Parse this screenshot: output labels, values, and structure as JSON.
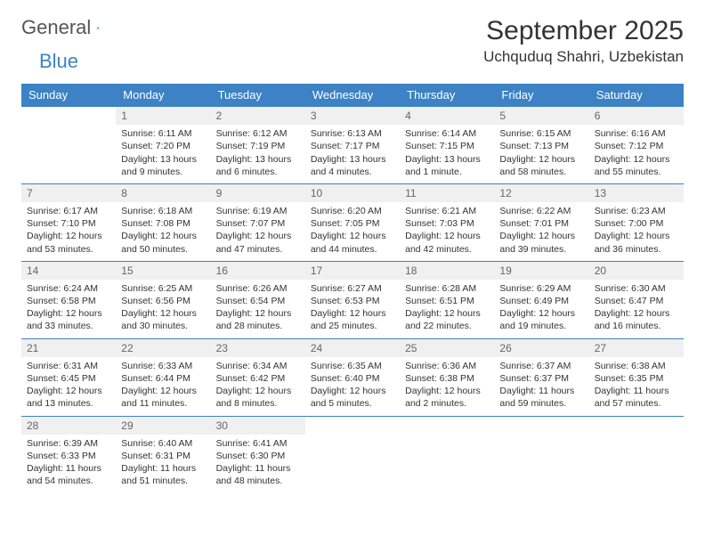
{
  "logo": {
    "text1": "General",
    "text2": "Blue"
  },
  "title": "September 2025",
  "location": "Uchquduq Shahri, Uzbekistan",
  "colors": {
    "header_bg": "#3c82c4",
    "header_text": "#ffffff",
    "daynum_bg": "#f0f0f0",
    "daynum_text": "#666666",
    "rule": "#3c82c4",
    "body_text": "#333333"
  },
  "weekdays": [
    "Sunday",
    "Monday",
    "Tuesday",
    "Wednesday",
    "Thursday",
    "Friday",
    "Saturday"
  ],
  "weeks": [
    [
      null,
      {
        "n": "1",
        "sr": "Sunrise: 6:11 AM",
        "ss": "Sunset: 7:20 PM",
        "dl": "Daylight: 13 hours and 9 minutes."
      },
      {
        "n": "2",
        "sr": "Sunrise: 6:12 AM",
        "ss": "Sunset: 7:19 PM",
        "dl": "Daylight: 13 hours and 6 minutes."
      },
      {
        "n": "3",
        "sr": "Sunrise: 6:13 AM",
        "ss": "Sunset: 7:17 PM",
        "dl": "Daylight: 13 hours and 4 minutes."
      },
      {
        "n": "4",
        "sr": "Sunrise: 6:14 AM",
        "ss": "Sunset: 7:15 PM",
        "dl": "Daylight: 13 hours and 1 minute."
      },
      {
        "n": "5",
        "sr": "Sunrise: 6:15 AM",
        "ss": "Sunset: 7:13 PM",
        "dl": "Daylight: 12 hours and 58 minutes."
      },
      {
        "n": "6",
        "sr": "Sunrise: 6:16 AM",
        "ss": "Sunset: 7:12 PM",
        "dl": "Daylight: 12 hours and 55 minutes."
      }
    ],
    [
      {
        "n": "7",
        "sr": "Sunrise: 6:17 AM",
        "ss": "Sunset: 7:10 PM",
        "dl": "Daylight: 12 hours and 53 minutes."
      },
      {
        "n": "8",
        "sr": "Sunrise: 6:18 AM",
        "ss": "Sunset: 7:08 PM",
        "dl": "Daylight: 12 hours and 50 minutes."
      },
      {
        "n": "9",
        "sr": "Sunrise: 6:19 AM",
        "ss": "Sunset: 7:07 PM",
        "dl": "Daylight: 12 hours and 47 minutes."
      },
      {
        "n": "10",
        "sr": "Sunrise: 6:20 AM",
        "ss": "Sunset: 7:05 PM",
        "dl": "Daylight: 12 hours and 44 minutes."
      },
      {
        "n": "11",
        "sr": "Sunrise: 6:21 AM",
        "ss": "Sunset: 7:03 PM",
        "dl": "Daylight: 12 hours and 42 minutes."
      },
      {
        "n": "12",
        "sr": "Sunrise: 6:22 AM",
        "ss": "Sunset: 7:01 PM",
        "dl": "Daylight: 12 hours and 39 minutes."
      },
      {
        "n": "13",
        "sr": "Sunrise: 6:23 AM",
        "ss": "Sunset: 7:00 PM",
        "dl": "Daylight: 12 hours and 36 minutes."
      }
    ],
    [
      {
        "n": "14",
        "sr": "Sunrise: 6:24 AM",
        "ss": "Sunset: 6:58 PM",
        "dl": "Daylight: 12 hours and 33 minutes."
      },
      {
        "n": "15",
        "sr": "Sunrise: 6:25 AM",
        "ss": "Sunset: 6:56 PM",
        "dl": "Daylight: 12 hours and 30 minutes."
      },
      {
        "n": "16",
        "sr": "Sunrise: 6:26 AM",
        "ss": "Sunset: 6:54 PM",
        "dl": "Daylight: 12 hours and 28 minutes."
      },
      {
        "n": "17",
        "sr": "Sunrise: 6:27 AM",
        "ss": "Sunset: 6:53 PM",
        "dl": "Daylight: 12 hours and 25 minutes."
      },
      {
        "n": "18",
        "sr": "Sunrise: 6:28 AM",
        "ss": "Sunset: 6:51 PM",
        "dl": "Daylight: 12 hours and 22 minutes."
      },
      {
        "n": "19",
        "sr": "Sunrise: 6:29 AM",
        "ss": "Sunset: 6:49 PM",
        "dl": "Daylight: 12 hours and 19 minutes."
      },
      {
        "n": "20",
        "sr": "Sunrise: 6:30 AM",
        "ss": "Sunset: 6:47 PM",
        "dl": "Daylight: 12 hours and 16 minutes."
      }
    ],
    [
      {
        "n": "21",
        "sr": "Sunrise: 6:31 AM",
        "ss": "Sunset: 6:45 PM",
        "dl": "Daylight: 12 hours and 13 minutes."
      },
      {
        "n": "22",
        "sr": "Sunrise: 6:33 AM",
        "ss": "Sunset: 6:44 PM",
        "dl": "Daylight: 12 hours and 11 minutes."
      },
      {
        "n": "23",
        "sr": "Sunrise: 6:34 AM",
        "ss": "Sunset: 6:42 PM",
        "dl": "Daylight: 12 hours and 8 minutes."
      },
      {
        "n": "24",
        "sr": "Sunrise: 6:35 AM",
        "ss": "Sunset: 6:40 PM",
        "dl": "Daylight: 12 hours and 5 minutes."
      },
      {
        "n": "25",
        "sr": "Sunrise: 6:36 AM",
        "ss": "Sunset: 6:38 PM",
        "dl": "Daylight: 12 hours and 2 minutes."
      },
      {
        "n": "26",
        "sr": "Sunrise: 6:37 AM",
        "ss": "Sunset: 6:37 PM",
        "dl": "Daylight: 11 hours and 59 minutes."
      },
      {
        "n": "27",
        "sr": "Sunrise: 6:38 AM",
        "ss": "Sunset: 6:35 PM",
        "dl": "Daylight: 11 hours and 57 minutes."
      }
    ],
    [
      {
        "n": "28",
        "sr": "Sunrise: 6:39 AM",
        "ss": "Sunset: 6:33 PM",
        "dl": "Daylight: 11 hours and 54 minutes."
      },
      {
        "n": "29",
        "sr": "Sunrise: 6:40 AM",
        "ss": "Sunset: 6:31 PM",
        "dl": "Daylight: 11 hours and 51 minutes."
      },
      {
        "n": "30",
        "sr": "Sunrise: 6:41 AM",
        "ss": "Sunset: 6:30 PM",
        "dl": "Daylight: 11 hours and 48 minutes."
      },
      null,
      null,
      null,
      null
    ]
  ]
}
